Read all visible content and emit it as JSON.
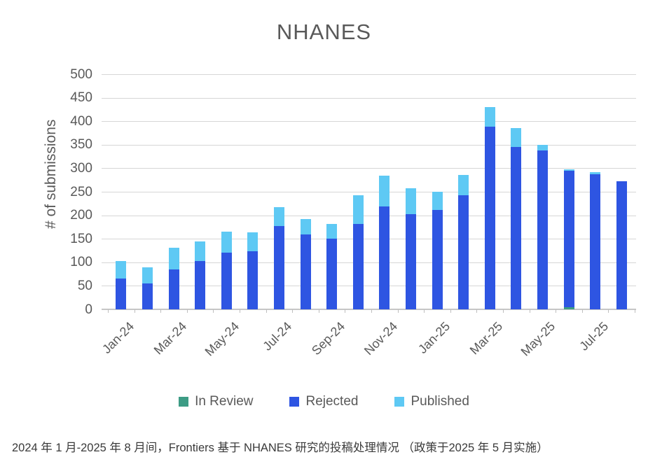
{
  "title": "NHANES",
  "y_axis_label": "# of submissions",
  "caption": "2024 年 1 月-2025 年 8 月间，Frontiers 基于 NHANES 研究的投稿处理情况 （政策于2025 年 5 月实施）",
  "chart_data": {
    "type": "bar",
    "stacked": true,
    "title": "NHANES",
    "ylabel": "# of submissions",
    "xlabel": "",
    "ylim": [
      0,
      500
    ],
    "y_ticks": [
      0,
      50,
      100,
      150,
      200,
      250,
      300,
      350,
      400,
      450,
      500
    ],
    "grid": true,
    "legend_position": "bottom",
    "categories": [
      "Jan-24",
      "Feb-24",
      "Mar-24",
      "Apr-24",
      "May-24",
      "Jun-24",
      "Jul-24",
      "Aug-24",
      "Sep-24",
      "Oct-24",
      "Nov-24",
      "Dec-24",
      "Jan-25",
      "Feb-25",
      "Mar-25",
      "Apr-25",
      "May-25",
      "Jun-25",
      "Jul-25",
      "Aug-25"
    ],
    "labeled_category_indices": [
      0,
      2,
      4,
      6,
      8,
      10,
      12,
      14,
      16,
      18
    ],
    "series": [
      {
        "name": "In Review",
        "color": "#3d9c85",
        "values": [
          0,
          0,
          0,
          0,
          0,
          0,
          0,
          0,
          0,
          0,
          0,
          0,
          0,
          0,
          0,
          0,
          0,
          4,
          0,
          0
        ]
      },
      {
        "name": "Rejected",
        "color": "#2e55e2",
        "values": [
          65,
          55,
          85,
          103,
          120,
          124,
          177,
          159,
          151,
          181,
          219,
          203,
          211,
          243,
          389,
          345,
          338,
          290,
          287,
          273
        ]
      },
      {
        "name": "Published",
        "color": "#5ec9f4",
        "values": [
          38,
          35,
          46,
          41,
          45,
          39,
          40,
          33,
          31,
          61,
          66,
          54,
          39,
          43,
          41,
          40,
          12,
          3,
          4,
          0
        ]
      }
    ],
    "totals": [
      103,
      90,
      131,
      144,
      165,
      163,
      217,
      192,
      182,
      242,
      285,
      257,
      250,
      286,
      430,
      385,
      350,
      297,
      291,
      273
    ]
  },
  "colors": {
    "gridline": "#d6d6d6",
    "axis_text": "#595959",
    "title_text": "#595959",
    "caption_text": "#3a3a3a"
  }
}
